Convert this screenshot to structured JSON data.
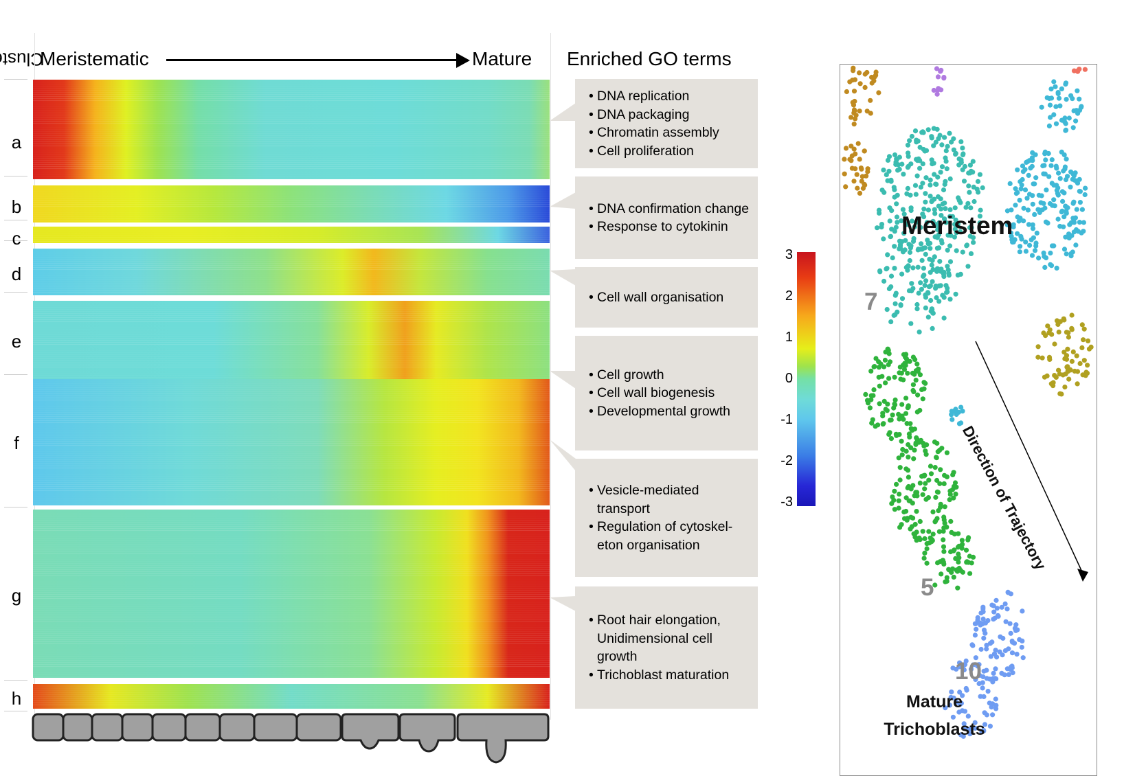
{
  "header": {
    "cluster_title": "Cluster",
    "axis_start": "Meristematic",
    "axis_end": "Mature",
    "go_title": "Enriched GO terms"
  },
  "clusters": [
    {
      "id": "a"
    },
    {
      "id": "b"
    },
    {
      "id": "c"
    },
    {
      "id": "d"
    },
    {
      "id": "e"
    },
    {
      "id": "f"
    },
    {
      "id": "g"
    },
    {
      "id": "h"
    }
  ],
  "go_terms": [
    {
      "items": [
        "DNA replication",
        "DNA packaging",
        "Chromatin assembly",
        "Cell proliferation"
      ]
    },
    {
      "items": [
        "DNA confirmation change",
        "Response to cytokinin"
      ]
    },
    {
      "items": [
        "Cell wall organisation"
      ]
    },
    {
      "items": [
        "Cell growth",
        "Cell wall biogenesis",
        "Developmental growth"
      ]
    },
    {
      "items": [
        "Vesicle-mediated transport",
        "Regulation of cytoskel-eton organisation"
      ]
    },
    {
      "items": [
        "Root hair elongation, Unidimensional cell growth",
        "Trichoblast maturation"
      ]
    }
  ],
  "colorbar": {
    "ticks": [
      "3",
      "2",
      "1",
      "0",
      "-1",
      "-2",
      "-3"
    ],
    "colors": [
      "#c8141e",
      "#f7a81b",
      "#e6ee1a",
      "#74e0a6",
      "#5fc7ec",
      "#3b7ee6",
      "#1a17b8"
    ]
  },
  "umap": {
    "meristem_label": "Meristem",
    "cluster_labels": [
      "7",
      "5",
      "10"
    ],
    "mature_label_line1": "Mature",
    "mature_label_line2": "Trichoblasts",
    "trajectory_label": "Direction of Trajectory",
    "cluster_colors": {
      "meristem_teal": "#3bbcb0",
      "meristem_blue": "#3fb8d6",
      "green": "#2fb33c",
      "light_blue": "#6f9cf2",
      "olive": "#b0a020",
      "brown": "#c08a20",
      "purple": "#b07ae0",
      "salmon": "#f07060"
    }
  }
}
